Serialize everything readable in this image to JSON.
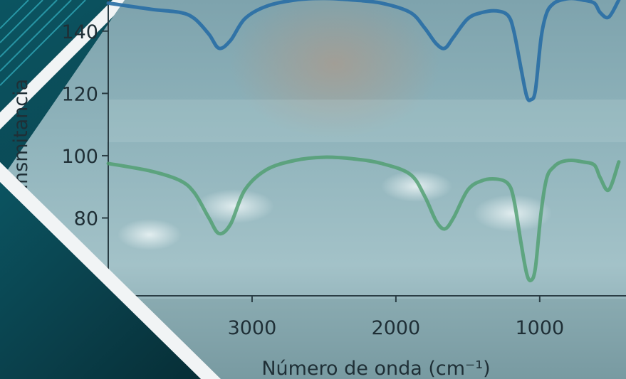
{
  "chart_data": {
    "type": "line",
    "xlabel": "Número de onda (cm⁻¹)",
    "ylabel": "Transmitancia",
    "x_reversed": true,
    "xlim": [
      4000,
      400
    ],
    "ylim": [
      55,
      150
    ],
    "x_ticks": [
      {
        "value": 3000,
        "label": "3000"
      },
      {
        "value": 2000,
        "label": "2000"
      },
      {
        "value": 1000,
        "label": "1000"
      }
    ],
    "y_ticks": [
      {
        "value": 80,
        "label": "80"
      },
      {
        "value": 100,
        "label": "100"
      },
      {
        "value": 120,
        "label": "120"
      },
      {
        "value": 140,
        "label": "140"
      }
    ],
    "grid": false,
    "legend": "none",
    "series": [
      {
        "color": "#2a6fa5",
        "x": [
          4000,
          3700,
          3500,
          3400,
          3300,
          3230,
          3150,
          3050,
          2900,
          2700,
          2500,
          2300,
          2100,
          1900,
          1800,
          1720,
          1660,
          1600,
          1500,
          1400,
          1300,
          1220,
          1180,
          1130,
          1090,
          1060,
          1030,
          990,
          950,
          900,
          850,
          780,
          700,
          620,
          580,
          520,
          450
        ],
        "y": [
          149,
          147,
          146,
          144,
          139,
          134.5,
          137,
          144,
          148,
          150,
          150.5,
          150,
          149,
          146,
          141,
          136,
          134.5,
          138,
          144,
          146,
          146.5,
          145,
          140,
          128,
          119,
          118,
          121,
          138,
          146,
          149,
          150,
          150.5,
          150,
          149,
          146,
          144.5,
          150
        ]
      },
      {
        "color": "#4e9e6e",
        "x": [
          4000,
          3700,
          3500,
          3400,
          3300,
          3230,
          3150,
          3050,
          2900,
          2700,
          2500,
          2300,
          2100,
          1900,
          1800,
          1720,
          1660,
          1600,
          1500,
          1400,
          1300,
          1220,
          1180,
          1130,
          1090,
          1060,
          1030,
          990,
          950,
          900,
          850,
          780,
          700,
          620,
          580,
          520,
          450
        ],
        "y": [
          97.5,
          95,
          92,
          88,
          80,
          75,
          78,
          89,
          95.5,
          98.5,
          99.5,
          99,
          97.5,
          94,
          87,
          79,
          76.5,
          80,
          89,
          92,
          92.5,
          91,
          86,
          72,
          62,
          60,
          64,
          82,
          93,
          96.5,
          98,
          98.5,
          98,
          97,
          93,
          89,
          98
        ]
      }
    ]
  }
}
